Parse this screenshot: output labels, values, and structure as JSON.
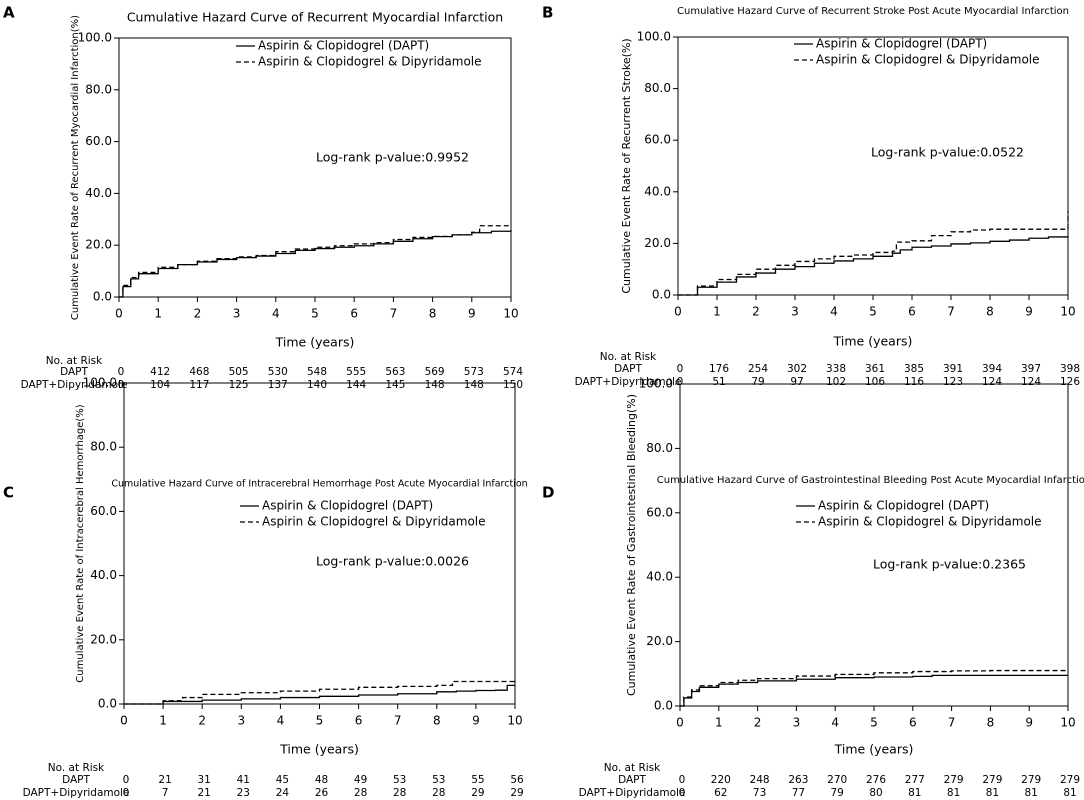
{
  "figure": {
    "x_label": "Time (years)",
    "risk_header": "No. at Risk",
    "risk_row_labels": [
      "DAPT",
      "DAPT+Dipyridamole"
    ],
    "legend": [
      "Aspirin & Clopidogrel (DAPT)",
      "Aspirin & Clopidogrel & Dipyridamole"
    ]
  },
  "chart_data": [
    {
      "panel": "A",
      "type": "line",
      "title": "Cumulative Hazard Curve of Recurrent Myocardial Infarction",
      "ylabel": "Cumulative Event Rate of Recurrent Myocardial Infarction(%)",
      "xlabel": "Time (years)",
      "xlim": [
        0,
        10
      ],
      "ylim": [
        0,
        100
      ],
      "x_ticks": [
        "0",
        "1",
        "2",
        "3",
        "4",
        "5",
        "6",
        "7",
        "8",
        "9",
        "10"
      ],
      "y_ticks": [
        "0.0",
        "20.0",
        "40.0",
        "60.0",
        "80.0",
        "100.0"
      ],
      "annotation": "Log-rank p-value:0.9952",
      "series": [
        {
          "name": "Aspirin & Clopidogrel (DAPT)",
          "style": "solid",
          "x": [
            0,
            0.1,
            0.3,
            0.5,
            1,
            1.5,
            2,
            2.5,
            3,
            3.5,
            4,
            4.5,
            5,
            5.5,
            6,
            6.5,
            7,
            7.5,
            8,
            8.5,
            9,
            9.5,
            10
          ],
          "y": [
            0,
            4,
            7,
            9,
            11,
            12.5,
            13.5,
            14.5,
            15.2,
            15.8,
            16.8,
            18,
            18.7,
            19.2,
            19.8,
            20.5,
            21.5,
            22.5,
            23.3,
            24,
            24.8,
            25.4,
            25.8
          ]
        },
        {
          "name": "Aspirin & Clopidogrel & Dipyridamole",
          "style": "dashed",
          "x": [
            0,
            0.1,
            0.3,
            0.5,
            1,
            1.5,
            2,
            2.5,
            3,
            3.5,
            4,
            4.5,
            5,
            5.5,
            6,
            6.5,
            7,
            7.5,
            8,
            8.5,
            9,
            9.2,
            9.5,
            10
          ],
          "y": [
            0,
            4.5,
            7.5,
            9.5,
            11.5,
            12.5,
            13.8,
            14.8,
            15.5,
            16,
            17.5,
            18.5,
            19.2,
            19.8,
            20.5,
            21,
            22.2,
            23,
            23.4,
            24,
            25,
            27.5,
            27.5,
            27.5
          ]
        }
      ],
      "risk_table": {
        "x": [
          0,
          1,
          2,
          3,
          4,
          5,
          6,
          7,
          8,
          9,
          10
        ],
        "rows": [
          [
            0,
            412,
            468,
            505,
            530,
            548,
            555,
            563,
            569,
            573,
            574
          ],
          [
            0,
            104,
            117,
            125,
            137,
            140,
            144,
            145,
            148,
            148,
            150
          ]
        ]
      }
    },
    {
      "panel": "B",
      "type": "line",
      "title": "Cumulative Hazard Curve of Recurrent Stroke Post Acute Myocardial Infarction",
      "ylabel": "Cumulative Event Rate of Recurrent Stroke(%)",
      "xlabel": "Time (years)",
      "xlim": [
        0,
        10
      ],
      "ylim": [
        0,
        100
      ],
      "x_ticks": [
        "0",
        "1",
        "2",
        "3",
        "4",
        "5",
        "6",
        "7",
        "8",
        "9",
        "10"
      ],
      "y_ticks": [
        "0.0",
        "20.0",
        "40.0",
        "60.0",
        "80.0",
        "100.0"
      ],
      "annotation": "Log-rank p-value:0.0522",
      "series": [
        {
          "name": "Aspirin & Clopidogrel (DAPT)",
          "style": "solid",
          "x": [
            0,
            0.5,
            1,
            1.5,
            2,
            2.5,
            3,
            3.5,
            4,
            4.5,
            5,
            5.5,
            5.7,
            6,
            6.5,
            7,
            7.5,
            8,
            8.5,
            9,
            9.5,
            10
          ],
          "y": [
            0,
            3,
            5,
            7,
            8.5,
            10,
            11,
            12.3,
            13.2,
            14,
            15,
            16.2,
            17.5,
            18.5,
            19,
            19.8,
            20.2,
            20.8,
            21.3,
            22,
            22.5,
            22.8
          ]
        },
        {
          "name": "Aspirin & Clopidogrel & Dipyridamole",
          "style": "dashed",
          "x": [
            0,
            0.5,
            1,
            1.5,
            2,
            2.5,
            3,
            3.5,
            4,
            4.5,
            5,
            5.5,
            5.6,
            6,
            6.5,
            7,
            7.5,
            8,
            8.5,
            9,
            9.5,
            9.95,
            10
          ],
          "y": [
            0,
            3.5,
            6,
            8,
            10,
            11.5,
            13,
            14,
            15,
            15.5,
            16.5,
            17,
            20.5,
            21,
            23,
            24.5,
            25.2,
            25.5,
            25.5,
            25.5,
            25.5,
            25.5,
            32.5
          ]
        }
      ],
      "risk_table": {
        "x": [
          0,
          1,
          2,
          3,
          4,
          5,
          6,
          7,
          8,
          9,
          10
        ],
        "rows": [
          [
            0,
            176,
            254,
            302,
            338,
            361,
            385,
            391,
            394,
            397,
            398
          ],
          [
            0,
            51,
            79,
            97,
            102,
            106,
            116,
            123,
            124,
            124,
            126
          ]
        ]
      }
    },
    {
      "panel": "C",
      "type": "line",
      "title": "Cumulative Hazard Curve of Intracerebral Hemorrhage Post Acute Myocardial Infarction",
      "ylabel": "Cumulative Event Rate of Intracerebral Hemorrhage(%)",
      "xlabel": "Time (years)",
      "xlim": [
        0,
        10
      ],
      "ylim": [
        0,
        100
      ],
      "x_ticks": [
        "0",
        "1",
        "2",
        "3",
        "4",
        "5",
        "6",
        "7",
        "8",
        "9",
        "10"
      ],
      "y_ticks": [
        "0.0",
        "20.0",
        "40.0",
        "60.0",
        "80.0",
        "100.0"
      ],
      "annotation": "Log-rank p-value:0.0026",
      "series": [
        {
          "name": "Aspirin & Clopidogrel (DAPT)",
          "style": "solid",
          "x": [
            0,
            1,
            2,
            3,
            4,
            5,
            6,
            7,
            8,
            8.5,
            9,
            9.5,
            9.8,
            10
          ],
          "y": [
            0,
            0.8,
            1.2,
            1.6,
            2,
            2.4,
            2.8,
            3.2,
            3.8,
            4,
            4.2,
            4.3,
            5.8,
            5.8
          ]
        },
        {
          "name": "Aspirin & Clopidogrel & Dipyridamole",
          "style": "dashed",
          "x": [
            0,
            1,
            1.5,
            2,
            3,
            4,
            5,
            6,
            7,
            8,
            8.4,
            9,
            9.5,
            10
          ],
          "y": [
            0,
            1,
            2,
            3,
            3.5,
            4,
            4.6,
            5.2,
            5.5,
            5.8,
            7,
            7,
            7,
            7
          ]
        }
      ],
      "risk_table": {
        "x": [
          0,
          1,
          2,
          3,
          4,
          5,
          6,
          7,
          8,
          9,
          10
        ],
        "rows": [
          [
            0,
            21,
            31,
            41,
            45,
            48,
            49,
            53,
            53,
            55,
            56
          ],
          [
            0,
            7,
            21,
            23,
            24,
            26,
            28,
            28,
            28,
            29,
            29
          ]
        ]
      }
    },
    {
      "panel": "D",
      "type": "line",
      "title": "Cumulative Hazard Curve of Gastrointestinal Bleeding Post Acute Myocardial Infarction",
      "ylabel": "Cumulative Event Rate of Gastrointestinal Bleeding(%)",
      "xlabel": "Time (years)",
      "xlim": [
        0,
        10
      ],
      "ylim": [
        0,
        100
      ],
      "x_ticks": [
        "0",
        "1",
        "2",
        "3",
        "4",
        "5",
        "6",
        "7",
        "8",
        "9",
        "10"
      ],
      "y_ticks": [
        "0.0",
        "20.0",
        "40.0",
        "60.0",
        "80.0",
        "100.0"
      ],
      "annotation": "Log-rank p-value:0.2365",
      "series": [
        {
          "name": "Aspirin & Clopidogrel (DAPT)",
          "style": "solid",
          "x": [
            0,
            0.1,
            0.3,
            0.5,
            1,
            1.5,
            2,
            3,
            4,
            5,
            6,
            6.5,
            7,
            8,
            9,
            10
          ],
          "y": [
            0,
            2.5,
            4.5,
            5.8,
            6.8,
            7.3,
            7.8,
            8.3,
            8.8,
            9,
            9.2,
            9.5,
            9.5,
            9.5,
            9.5,
            9.5
          ]
        },
        {
          "name": "Aspirin & Clopidogrel & Dipyridamole",
          "style": "dashed",
          "x": [
            0,
            0.1,
            0.3,
            0.5,
            1,
            1.5,
            2,
            3,
            4,
            5,
            6,
            7,
            8,
            9,
            10
          ],
          "y": [
            0,
            2.8,
            5,
            6.3,
            7.3,
            8,
            8.5,
            9.3,
            9.8,
            10.3,
            10.7,
            10.9,
            11,
            11,
            11
          ]
        }
      ],
      "risk_table": {
        "x": [
          0,
          1,
          2,
          3,
          4,
          5,
          6,
          7,
          8,
          9,
          10
        ],
        "rows": [
          [
            0,
            220,
            248,
            263,
            270,
            276,
            277,
            279,
            279,
            279,
            279
          ],
          [
            0,
            62,
            73,
            77,
            79,
            80,
            81,
            81,
            81,
            81,
            81
          ]
        ]
      }
    }
  ]
}
